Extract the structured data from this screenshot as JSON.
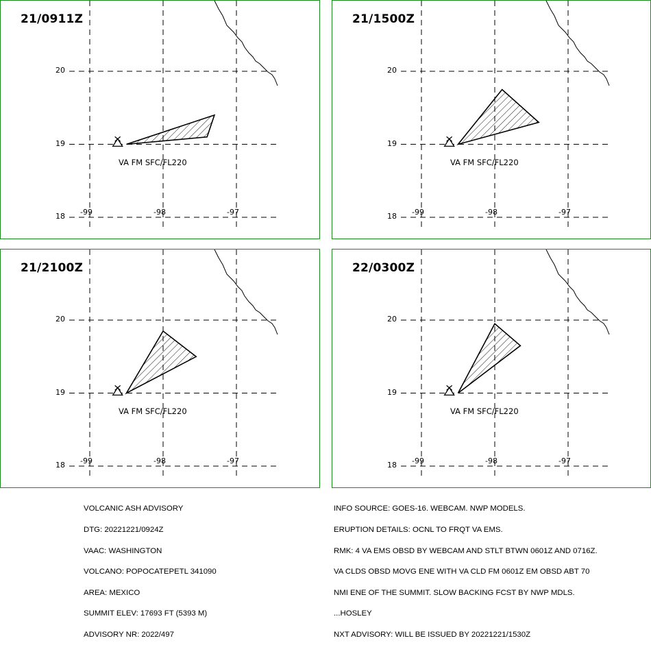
{
  "panels": [
    {
      "time": "21/0911Z",
      "layer": "VA FM SFC/FL220",
      "lat_labels": [
        "20",
        "19",
        "18"
      ],
      "lon_labels": [
        "-99",
        "-98",
        "-97"
      ],
      "ash_polygon": [
        [
          -98.5,
          19.0
        ],
        [
          -97.3,
          19.4
        ],
        [
          -97.4,
          19.1
        ]
      ]
    },
    {
      "time": "21/1500Z",
      "layer": "VA FM SFC/FL220",
      "lat_labels": [
        "20",
        "19",
        "18"
      ],
      "lon_labels": [
        "-99",
        "-98",
        "-97"
      ],
      "ash_polygon": [
        [
          -98.5,
          19.0
        ],
        [
          -97.9,
          19.75
        ],
        [
          -97.4,
          19.3
        ]
      ]
    },
    {
      "time": "21/2100Z",
      "layer": "VA FM SFC/FL220",
      "lat_labels": [
        "20",
        "19",
        "18"
      ],
      "lon_labels": [
        "-99",
        "-98",
        "-97"
      ],
      "ash_polygon": [
        [
          -98.5,
          19.0
        ],
        [
          -98.0,
          19.85
        ],
        [
          -97.55,
          19.5
        ]
      ]
    },
    {
      "time": "22/0300Z",
      "layer": "VA FM SFC/FL220",
      "lat_labels": [
        "20",
        "19",
        "18"
      ],
      "lon_labels": [
        "-99",
        "-98",
        "-97"
      ],
      "ash_polygon": [
        [
          -98.5,
          19.0
        ],
        [
          -98.0,
          19.95
        ],
        [
          -97.65,
          19.65
        ]
      ]
    }
  ],
  "volcano": {
    "lon": -98.62,
    "lat": 19.02,
    "symbol": "volcano-triangle-icon"
  },
  "advisory_left": [
    "VOLCANIC ASH ADVISORY",
    "DTG: 20221221/0924Z",
    "VAAC: WASHINGTON",
    "VOLCANO: POPOCATEPETL 341090",
    "AREA: MEXICO",
    "SUMMIT ELEV: 17693 FT (5393 M)",
    "ADVISORY NR: 2022/497"
  ],
  "advisory_right": [
    "INFO SOURCE: GOES-16. WEBCAM. NWP MODELS.",
    "ERUPTION DETAILS: OCNL TO FRQT VA EMS.",
    "RMK: 4 VA EMS OBSD BY WEBCAM AND STLT BTWN 0601Z AND 0716Z.",
    "VA CLDS OBSD MOVG ENE WITH VA CLD FM 0601Z EM OBSD ABT 70",
    "NMI ENE OF THE SUMMIT. SLOW BACKING FCST BY NWP MDLS.",
    "...HOSLEY",
    "NXT ADVISORY: WILL BE ISSUED BY 20221221/1530Z"
  ],
  "colors": {
    "frame": "#1a8a1a",
    "grid": "#000000",
    "polygon_stroke": "#000000"
  }
}
